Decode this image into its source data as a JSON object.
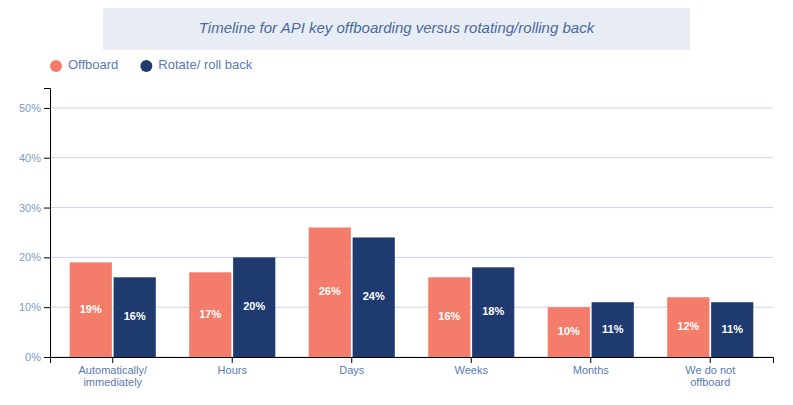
{
  "chart_data": {
    "type": "bar",
    "title": "Timeline for API key offboarding versus rotating/rolling back",
    "categories": [
      "Automatically/\nimmediately",
      "Hours",
      "Days",
      "Weeks",
      "Months",
      "We do not\noffboard"
    ],
    "series": [
      {
        "name": "Offboard",
        "color": "#F47C6A",
        "values": [
          19,
          17,
          26,
          16,
          10,
          12
        ],
        "value_labels": [
          "19%",
          "17%",
          "26%",
          "16%",
          "10%",
          "12%"
        ]
      },
      {
        "name": "Rotate/ roll back",
        "color": "#1E3A6E",
        "values": [
          16,
          20,
          24,
          18,
          11,
          11
        ],
        "value_labels": [
          "16%",
          "20%",
          "24%",
          "18%",
          "11%",
          "11%"
        ]
      }
    ],
    "ylim": [
      0,
      54
    ],
    "yticks": [
      {
        "value": 0,
        "label": "0%"
      },
      {
        "value": 10,
        "label": "10%"
      },
      {
        "value": 20,
        "label": "20%"
      },
      {
        "value": 30,
        "label": "30%"
      },
      {
        "value": 40,
        "label": "40%"
      },
      {
        "value": 50,
        "label": "50%"
      }
    ],
    "grid": true,
    "legend": "upper left",
    "data_labels": true
  }
}
